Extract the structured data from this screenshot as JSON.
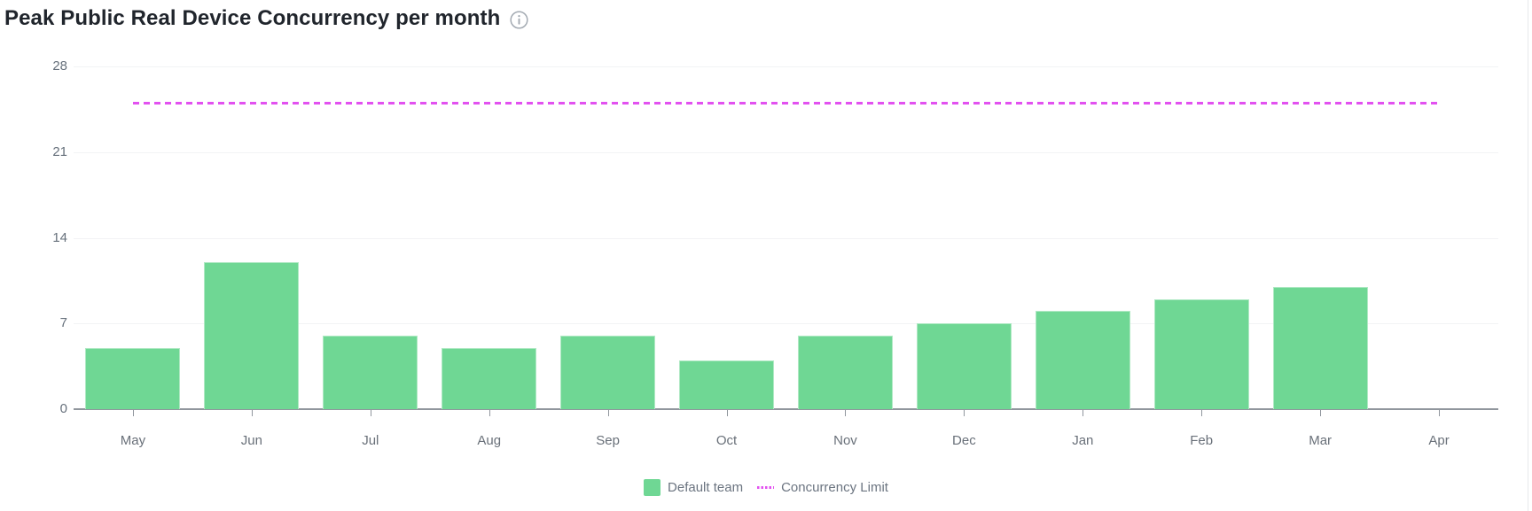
{
  "header": {
    "title": "Peak Public Real Device Concurrency per month",
    "info_icon": "info-circle"
  },
  "legend": {
    "items": [
      {
        "label": "Default team",
        "swatch": "green-square",
        "color": "#6fd794"
      },
      {
        "label": "Concurrency Limit",
        "swatch": "magenta-dotted-line",
        "color": "#e251f0"
      }
    ]
  },
  "chart_data": {
    "type": "bar",
    "title": "Peak Public Real Device Concurrency per month",
    "categories": [
      "May",
      "Jun",
      "Jul",
      "Aug",
      "Sep",
      "Oct",
      "Nov",
      "Dec",
      "Jan",
      "Feb",
      "Mar",
      "Apr"
    ],
    "series": [
      {
        "name": "Default team",
        "color": "#6fd794",
        "values": [
          5,
          12,
          6,
          5,
          6,
          4,
          6,
          7,
          8,
          9,
          10,
          0
        ]
      }
    ],
    "limit_line": {
      "name": "Concurrency Limit",
      "value": 25,
      "color": "#e251f0",
      "style": "dashed"
    },
    "xlabel": "",
    "ylabel": "",
    "ylim": [
      0,
      28
    ],
    "yticks": [
      0,
      7,
      14,
      21,
      28
    ],
    "grid": true,
    "legend_position": "bottom"
  }
}
